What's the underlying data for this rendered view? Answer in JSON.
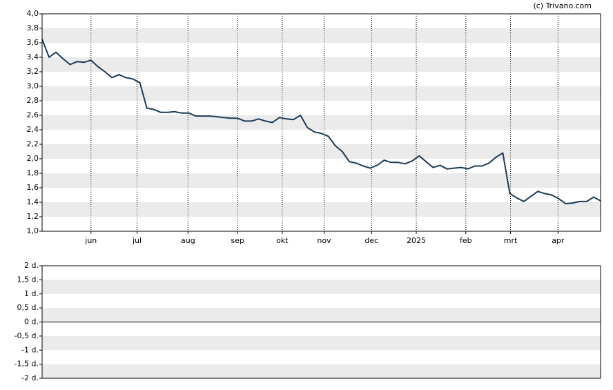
{
  "credit": "(c) Trivano.com",
  "chart_data": [
    {
      "type": "line",
      "xlim": [
        0,
        80
      ],
      "xticks": [
        {
          "value": 7.0,
          "label": "jun"
        },
        {
          "value": 13.6,
          "label": "jul"
        },
        {
          "value": 20.9,
          "label": "aug"
        },
        {
          "value": 28.0,
          "label": "sep"
        },
        {
          "value": 34.4,
          "label": "okt"
        },
        {
          "value": 40.4,
          "label": "nov"
        },
        {
          "value": 47.2,
          "label": "dec"
        },
        {
          "value": 53.6,
          "label": "2025"
        },
        {
          "value": 60.7,
          "label": "feb"
        },
        {
          "value": 67.1,
          "label": "mrt"
        },
        {
          "value": 73.9,
          "label": "apr"
        }
      ],
      "ylim": [
        1.0,
        4.0
      ],
      "yticks": [
        {
          "value": 1.0,
          "label": "1,0"
        },
        {
          "value": 1.2,
          "label": "1,2"
        },
        {
          "value": 1.4,
          "label": "1,4"
        },
        {
          "value": 1.6,
          "label": "1,6"
        },
        {
          "value": 1.8,
          "label": "1,8"
        },
        {
          "value": 2.0,
          "label": "2,0"
        },
        {
          "value": 2.2,
          "label": "2,2"
        },
        {
          "value": 2.4,
          "label": "2,4"
        },
        {
          "value": 2.6,
          "label": "2,6"
        },
        {
          "value": 2.8,
          "label": "2,8"
        },
        {
          "value": 3.0,
          "label": "3,0"
        },
        {
          "value": 3.2,
          "label": "3,2"
        },
        {
          "value": 3.4,
          "label": "3,4"
        },
        {
          "value": 3.6,
          "label": "3,6"
        },
        {
          "value": 3.8,
          "label": "3,8"
        },
        {
          "value": 4.0,
          "label": "4,0"
        }
      ],
      "grid": true,
      "series": [
        {
          "color": "#1b3a57",
          "values": [
            3.65,
            3.4,
            3.47,
            3.38,
            3.3,
            3.34,
            3.33,
            3.36,
            3.27,
            3.2,
            3.12,
            3.16,
            3.12,
            3.1,
            3.05,
            2.7,
            2.68,
            2.64,
            2.64,
            2.65,
            2.63,
            2.63,
            2.59,
            2.59,
            2.59,
            2.58,
            2.57,
            2.56,
            2.56,
            2.52,
            2.52,
            2.55,
            2.52,
            2.5,
            2.57,
            2.55,
            2.54,
            2.6,
            2.43,
            2.37,
            2.35,
            2.31,
            2.18,
            2.1,
            1.96,
            1.94,
            1.9,
            1.87,
            1.91,
            1.98,
            1.95,
            1.95,
            1.93,
            1.97,
            2.04,
            1.96,
            1.88,
            1.91,
            1.86,
            1.87,
            1.88,
            1.86,
            1.9,
            1.9,
            1.94,
            2.02,
            2.08,
            1.52,
            1.46,
            1.41,
            1.48,
            1.55,
            1.52,
            1.5,
            1.45,
            1.38,
            1.39,
            1.41,
            1.41,
            1.47,
            1.42
          ]
        }
      ]
    },
    {
      "type": "bar",
      "ylim": [
        -2,
        2
      ],
      "yticks": [
        {
          "value": -2,
          "label": "-2 d."
        },
        {
          "value": -1.5,
          "label": "-1,5 d."
        },
        {
          "value": -1,
          "label": "-1 d."
        },
        {
          "value": -0.5,
          "label": "-0,5 d."
        },
        {
          "value": 0,
          "label": "0 d."
        },
        {
          "value": 0.5,
          "label": "0,5 d."
        },
        {
          "value": 1,
          "label": "1 d."
        },
        {
          "value": 1.5,
          "label": "1,5 d."
        },
        {
          "value": 2,
          "label": "2 d."
        }
      ],
      "grid": true
    }
  ]
}
